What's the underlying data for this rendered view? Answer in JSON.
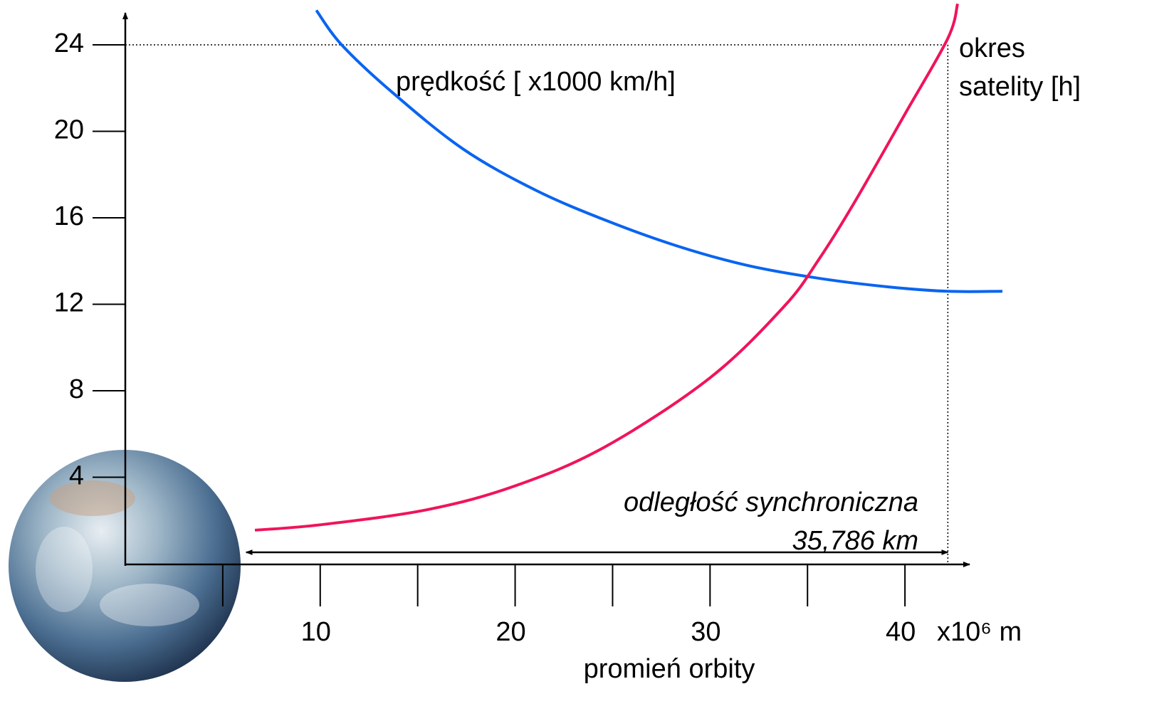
{
  "chart_data": {
    "type": "line",
    "x_label": "promień orbity",
    "x_unit": "x10⁶ m",
    "xlim": [
      0,
      45
    ],
    "ylim": [
      0,
      26
    ],
    "xticks": [
      10,
      20,
      30,
      40
    ],
    "x_minor_ticks": [
      5,
      15,
      25,
      35
    ],
    "yticks": [
      4,
      8,
      12,
      16,
      20,
      24
    ],
    "series": [
      {
        "name": "prędkość [ x1000 km/h]",
        "color": "#0a64f0",
        "x": [
          9.8,
          11.1,
          13.7,
          17.3,
          21.0,
          24.6,
          28.3,
          31.9,
          35.6,
          39.2,
          42.2,
          45.0
        ],
        "values": [
          25.6,
          24.0,
          21.8,
          19.2,
          17.3,
          15.9,
          14.7,
          13.8,
          13.2,
          12.8,
          12.6,
          12.6
        ]
      },
      {
        "name": [
          "okres",
          "satelity [h]"
        ],
        "color": "#f0145a",
        "x": [
          6.65,
          10.0,
          15.5,
          20.0,
          24.6,
          30.0,
          33.8,
          35.6,
          37.4,
          40.0,
          42.2,
          42.7
        ],
        "values": [
          1.55,
          1.8,
          2.5,
          3.6,
          5.4,
          8.6,
          11.9,
          14.1,
          16.7,
          20.8,
          24.3,
          25.9
        ]
      }
    ],
    "reference_lines": {
      "x": 42.2,
      "y": 24
    },
    "annotation": {
      "lines": [
        "odległość synchroniczna",
        "35,786 km"
      ],
      "arrow_x": [
        6.2,
        42.2
      ]
    }
  }
}
